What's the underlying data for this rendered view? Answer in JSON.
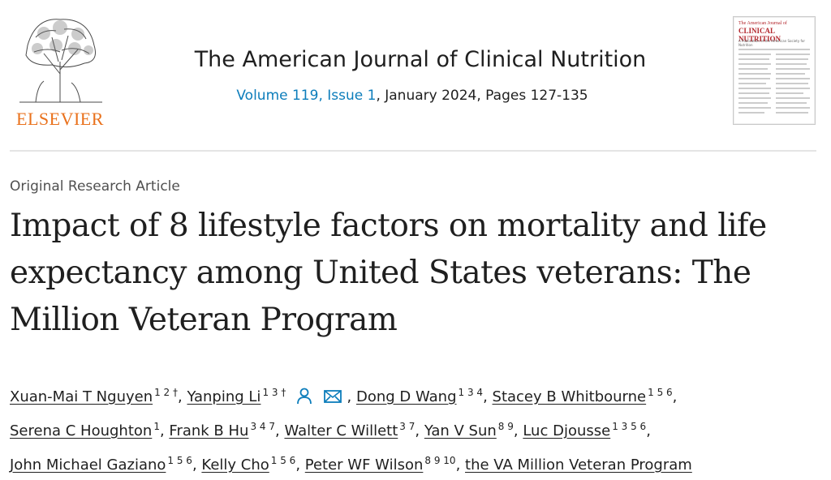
{
  "header": {
    "publisher": "ELSEVIER",
    "journal_title": "The American Journal of Clinical Nutrition",
    "issue_link": "Volume 119, Issue 1",
    "issue_rest": ", January 2024, Pages 127-135",
    "cover": {
      "line1": "The American Journal of",
      "line2": "CLINICAL NUTRITION",
      "line3": "A Publication of the American Society for Nutrition"
    }
  },
  "article": {
    "type": "Original Research Article",
    "title": "Impact of 8 lifestyle factors on mortality and life expectancy among United States veterans: The Million Veteran Program"
  },
  "authors": [
    {
      "name": "Xuan-Mai T Nguyen",
      "sup": "1 2 †"
    },
    {
      "name": "Yanping Li",
      "sup": "1 3 †"
    },
    {
      "name": "Dong D Wang",
      "sup": "1 3 4"
    },
    {
      "name": "Stacey B Whitbourne",
      "sup": "1 5 6"
    },
    {
      "name": "Serena C Houghton",
      "sup": "1"
    },
    {
      "name": "Frank B Hu",
      "sup": "3 4 7"
    },
    {
      "name": "Walter C Willett",
      "sup": "3 7"
    },
    {
      "name": "Yan V Sun",
      "sup": "8 9"
    },
    {
      "name": "Luc Djousse",
      "sup": "1 3 5 6"
    },
    {
      "name": "John Michael Gaziano",
      "sup": "1 5 6"
    },
    {
      "name": "Kelly Cho",
      "sup": "1 5 6"
    },
    {
      "name": "Peter WF Wilson",
      "sup": "8 9 10"
    },
    {
      "name": "the VA Million Veteran Program",
      "sup": ""
    }
  ],
  "icons": {
    "person": "person-icon",
    "email": "email-icon"
  },
  "colors": {
    "brand_orange": "#e9711c",
    "link_blue": "#0c7dbb",
    "text": "#1f1f1f"
  }
}
